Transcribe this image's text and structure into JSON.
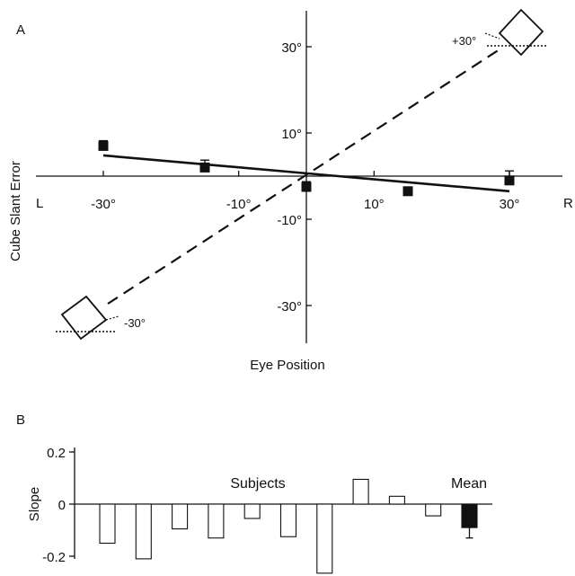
{
  "chart_data": [
    {
      "panel_label": "A",
      "type": "scatter",
      "ylabel": "Cube Slant Error",
      "xlabel": "Eye Position",
      "x_end_labels": {
        "left": "L",
        "right": "R"
      },
      "x_tick_labels": [
        "-30°",
        "-10°",
        "10°",
        "30°"
      ],
      "x_ticks": [
        -30,
        -10,
        10,
        30
      ],
      "y_tick_labels": [
        "30°",
        "10°",
        "-10°",
        "-30°"
      ],
      "y_ticks": [
        30,
        10,
        -10,
        -30
      ],
      "xlim": [
        -40,
        40
      ],
      "ylim": [
        -40,
        40
      ],
      "points": [
        {
          "x": -30,
          "y": 7.0,
          "err": 1.0
        },
        {
          "x": -15,
          "y": 2.0,
          "err": 1.5
        },
        {
          "x": 0,
          "y": -2.5,
          "err": 1.0
        },
        {
          "x": 15,
          "y": -3.5,
          "err": 0.7
        },
        {
          "x": 30,
          "y": -1.0,
          "err": 2.0
        }
      ],
      "fit_line": {
        "x": [
          -30,
          30
        ],
        "y": [
          4.8,
          -3.5
        ]
      },
      "reference_line": {
        "x": [
          -30,
          30
        ],
        "y": [
          -30,
          30
        ]
      },
      "annotations": {
        "upper": "+30°",
        "lower": "-30°"
      }
    },
    {
      "panel_label": "B",
      "type": "bar",
      "ylabel": "Slope",
      "y_tick_labels": [
        "0.2",
        "0",
        "-0.2"
      ],
      "y_ticks": [
        0.2,
        0,
        -0.2
      ],
      "ylim": [
        -0.2,
        0.2
      ],
      "annotations": {
        "subjects": "Subjects",
        "mean": "Mean"
      },
      "bars": [
        {
          "value": -0.15,
          "fill": "#ffffff"
        },
        {
          "value": -0.21,
          "fill": "#ffffff"
        },
        {
          "value": -0.095,
          "fill": "#ffffff"
        },
        {
          "value": -0.13,
          "fill": "#ffffff"
        },
        {
          "value": -0.055,
          "fill": "#ffffff"
        },
        {
          "value": -0.125,
          "fill": "#ffffff"
        },
        {
          "value": -0.265,
          "fill": "#ffffff"
        },
        {
          "value": 0.095,
          "fill": "#ffffff"
        },
        {
          "value": 0.03,
          "fill": "#ffffff"
        },
        {
          "value": -0.045,
          "fill": "#ffffff"
        },
        {
          "value": -0.09,
          "fill": "#111111",
          "err": 0.04
        }
      ]
    }
  ]
}
